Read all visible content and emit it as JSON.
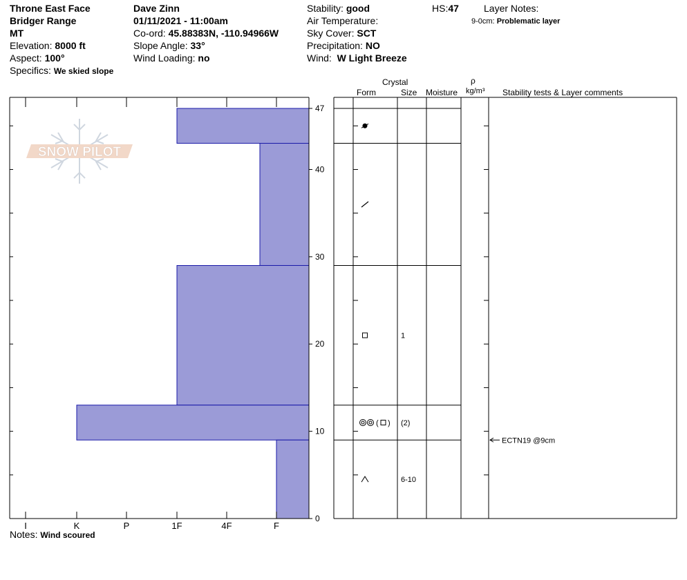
{
  "header": {
    "location": "Throne East Face",
    "range": "Bridger Range",
    "state": "MT",
    "elevation_label": "Elevation:",
    "elevation": "8000 ft",
    "aspect_label": "Aspect:",
    "aspect": "100°",
    "specifics_label": "Specifics:",
    "specifics": "We skied slope",
    "observer": "Dave Zinn",
    "datetime": "01/11/2021 - 11:00am",
    "coord_label": "Co-ord:",
    "coord": "45.88383N, -110.94966W",
    "slope_label": "Slope Angle:",
    "slope": "33°",
    "wind_loading_label": "Wind Loading:",
    "wind_loading": "no",
    "stability_label": "Stability:",
    "stability": "good",
    "air_temp_label": "Air Temperature:",
    "sky_label": "Sky Cover:",
    "sky": "SCT",
    "precip_label": "Precipitation:",
    "precip": "NO",
    "wind_label": "Wind:",
    "wind": "W Light Breeze",
    "hs_label": "HS:",
    "hs": "47",
    "layer_notes_label": "Layer Notes:",
    "layer_note": "9-0cm:",
    "layer_note_text": "Problematic layer"
  },
  "logo": {
    "text": "SNOW PILOT"
  },
  "columns": {
    "crystal": "Crystal",
    "form": "Form",
    "size": "Size",
    "moisture": "Moisture",
    "rho": "ρ",
    "density_unit": "kg/m³",
    "comments": "Stability tests & Layer comments"
  },
  "footer": {
    "notes_label": "Notes:",
    "notes": "Wind scoured"
  },
  "colors": {
    "layer_fill": "#9b9bd7",
    "layer_stroke": "#1a1aa8"
  },
  "chart_data": {
    "type": "bar",
    "orientation": "horizontal",
    "y_axis": {
      "ylim": [
        0,
        47
      ],
      "ticks": [
        0,
        10,
        20,
        30,
        40,
        47
      ]
    },
    "hardness_scale": [
      "I",
      "K",
      "P",
      "1F",
      "4F",
      "F"
    ],
    "layers": [
      {
        "top": 47,
        "bottom": 43,
        "hardness": "1F",
        "form_icon": "rounding-faceted-icon",
        "size": ""
      },
      {
        "top": 43,
        "bottom": 29,
        "hardness": "4F",
        "form_icon": "decomposed-fragments-icon",
        "size": ""
      },
      {
        "top": 29,
        "bottom": 13,
        "hardness": "1F",
        "form_icon": "faceted-crystal-icon",
        "size": "1"
      },
      {
        "top": 13,
        "bottom": 9,
        "hardness": "K",
        "form_icon": "melt-forms-facets-icon",
        "size": "(2)"
      },
      {
        "top": 9,
        "bottom": 0,
        "hardness": "F",
        "form_icon": "depth-hoar-icon",
        "size": "6-10"
      }
    ],
    "tests": [
      {
        "depth": 9,
        "label": "ECTN19 @9cm"
      }
    ]
  }
}
